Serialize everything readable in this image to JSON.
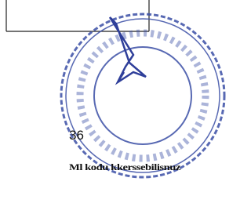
{
  "page_number": "36",
  "footer_text": "Ml kodu kkerssebilisnuz"
}
